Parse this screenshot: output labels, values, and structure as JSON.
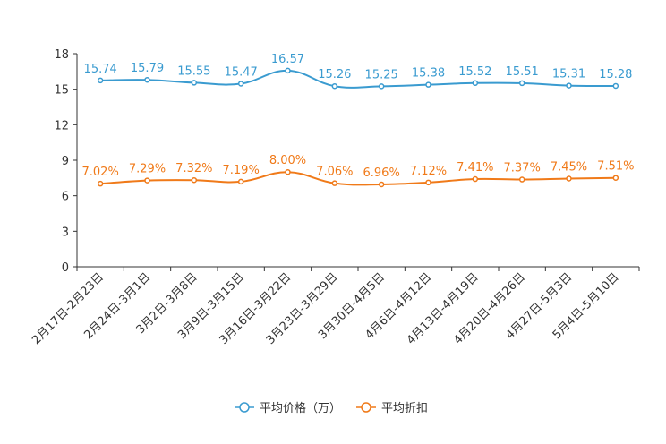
{
  "chart_data": {
    "type": "line",
    "title": "",
    "xlabel": "",
    "ylabel": "",
    "ylim": [
      0,
      18
    ],
    "yticks": [
      0,
      3,
      6,
      9,
      12,
      15,
      18
    ],
    "grid": false,
    "categories": [
      "2月17日-2月23日",
      "2月24日-3月1日",
      "3月2日-3月8日",
      "3月9日-3月15日",
      "3月16日-3月22日",
      "3月23日-3月29日",
      "3月30日-4月5日",
      "4月6日-4月12日",
      "4月13日-4月19日",
      "4月20日-4月26日",
      "4月27日-5月3日",
      "5月4日-5月10日"
    ],
    "series": [
      {
        "name": "平均价格（万）",
        "color": "#3a9bd0",
        "values": [
          15.74,
          15.79,
          15.55,
          15.47,
          16.57,
          15.26,
          15.25,
          15.38,
          15.52,
          15.51,
          15.31,
          15.28
        ],
        "labels": [
          "15.74",
          "15.79",
          "15.55",
          "15.47",
          "16.57",
          "15.26",
          "15.25",
          "15.38",
          "15.52",
          "15.51",
          "15.31",
          "15.28"
        ]
      },
      {
        "name": "平均折扣",
        "color": "#f07a19",
        "values": [
          7.02,
          7.29,
          7.32,
          7.19,
          8.0,
          7.06,
          6.96,
          7.12,
          7.41,
          7.37,
          7.45,
          7.51
        ],
        "labels": [
          "7.02%",
          "7.29%",
          "7.32%",
          "7.19%",
          "8.00%",
          "7.06%",
          "6.96%",
          "7.12%",
          "7.41%",
          "7.37%",
          "7.45%",
          "7.51%"
        ]
      }
    ],
    "legend": "bottom"
  }
}
